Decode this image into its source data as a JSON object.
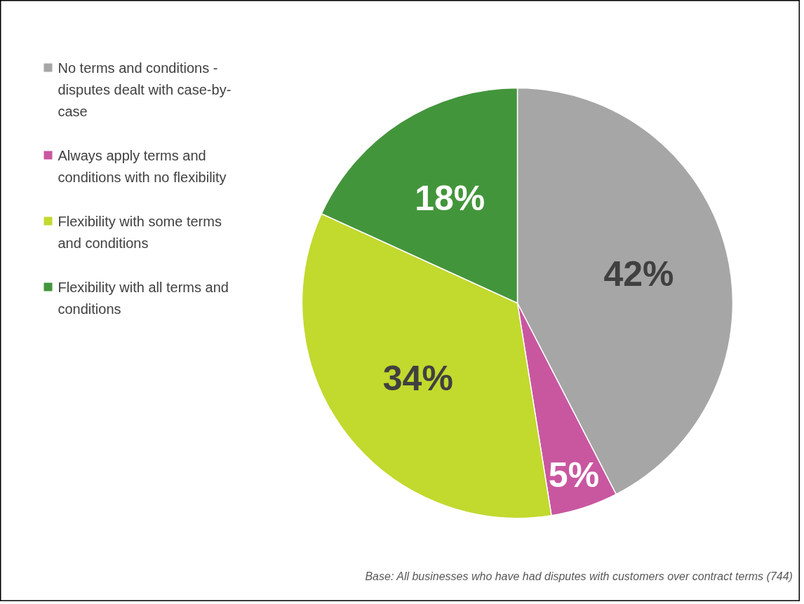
{
  "chart_data": {
    "type": "pie",
    "categories": [
      "No terms and conditions - disputes dealt with case-by-case",
      "Always apply terms and conditions with no flexibility",
      "Flexibility with some terms and conditions",
      "Flexibility with all terms and conditions"
    ],
    "values": [
      42,
      5,
      34,
      18
    ],
    "colors": [
      "#a6a6a6",
      "#c957a0",
      "#c2d92e",
      "#43953b"
    ],
    "value_labels": [
      "42%",
      "5%",
      "34%",
      "18%"
    ],
    "legend": "left",
    "annotations": [
      "Base: All businesses who have had disputes with customers over contract terms (744)"
    ]
  }
}
